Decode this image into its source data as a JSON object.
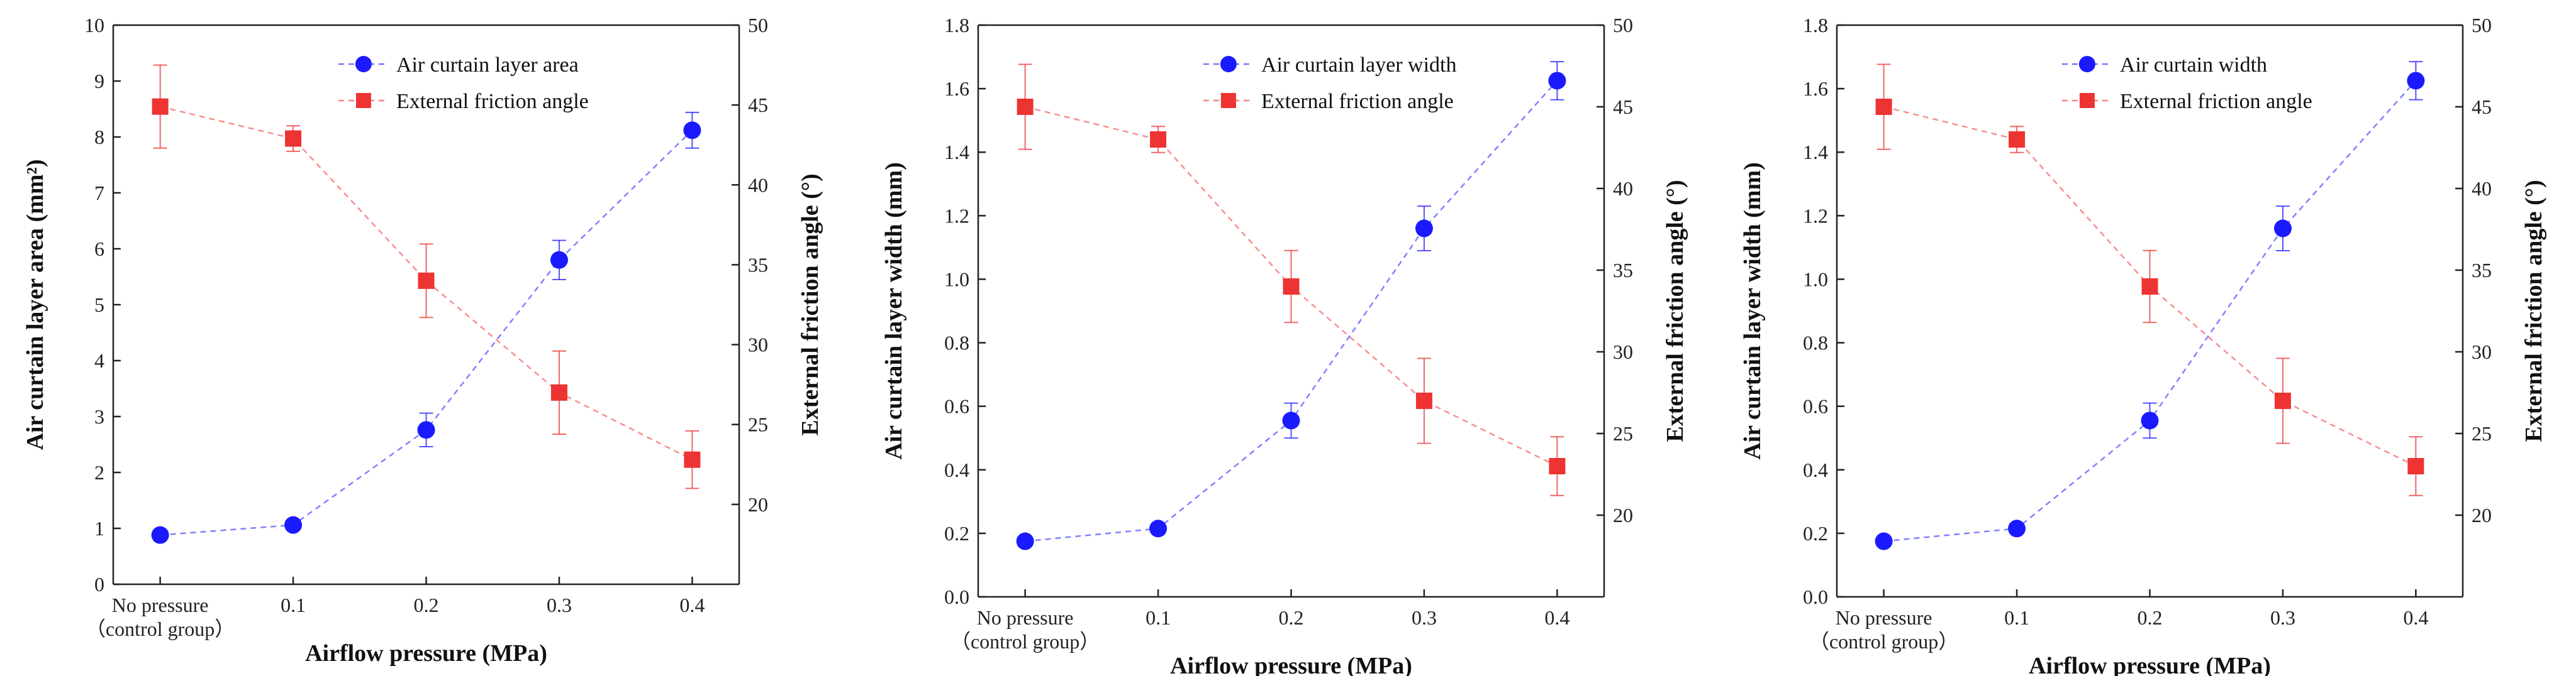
{
  "chart_data": [
    {
      "type": "line",
      "categories": [
        "No pressure\n（control group）",
        "0.1",
        "0.2",
        "0.3",
        "0.4"
      ],
      "xlabel": "Airflow pressure (MPa)",
      "ylabel_left": "Air curtain layer area (mm²)",
      "ylabel_right": "External friction angle (°)",
      "ylim_left": [
        0,
        10
      ],
      "yticks_left": [
        0,
        1,
        2,
        3,
        4,
        5,
        6,
        7,
        8,
        9,
        10
      ],
      "ylim_right": [
        15,
        50
      ],
      "yticks_right": [
        20,
        25,
        30,
        35,
        40,
        45,
        50
      ],
      "legend_placement": "top-center",
      "series": [
        {
          "name": "Air curtain layer area",
          "axis": "left",
          "color": "#1a1aff",
          "marker": "circle",
          "values": [
            0.88,
            1.06,
            2.76,
            5.8,
            8.12
          ],
          "errors": [
            0.05,
            0.06,
            0.3,
            0.35,
            0.32
          ]
        },
        {
          "name": "External friction angle",
          "axis": "right",
          "color": "#ee3333",
          "marker": "square",
          "values": [
            44.9,
            42.9,
            34.0,
            27.0,
            22.8
          ],
          "errors": [
            2.6,
            0.8,
            2.3,
            2.6,
            1.8
          ]
        }
      ]
    },
    {
      "type": "line",
      "categories": [
        "No pressure\n（control group）",
        "0.1",
        "0.2",
        "0.3",
        "0.4"
      ],
      "xlabel": "Airflow pressure (MPa)",
      "ylabel_left": "Air curtain layer width (mm)",
      "ylabel_right": "External friction angle (°)",
      "ylim_left": [
        0,
        1.8
      ],
      "yticks_left": [
        0.0,
        0.2,
        0.4,
        0.6,
        0.8,
        1.0,
        1.2,
        1.4,
        1.6,
        1.8
      ],
      "ylim_right": [
        15,
        50
      ],
      "yticks_right": [
        20,
        25,
        30,
        35,
        40,
        45,
        50
      ],
      "legend_placement": "top-center",
      "series": [
        {
          "name": "Air curtain layer width",
          "axis": "left",
          "color": "#1a1aff",
          "marker": "circle",
          "values": [
            0.175,
            0.215,
            0.555,
            1.16,
            1.625
          ],
          "errors": [
            0.01,
            0.01,
            0.055,
            0.07,
            0.06
          ]
        },
        {
          "name": "External friction angle",
          "axis": "right",
          "color": "#ee3333",
          "marker": "square",
          "values": [
            45.0,
            43.0,
            34.0,
            27.0,
            23.0
          ],
          "errors": [
            2.6,
            0.8,
            2.2,
            2.6,
            1.8
          ]
        }
      ]
    },
    {
      "type": "line",
      "categories": [
        "No pressure\n（control group）",
        "0.1",
        "0.2",
        "0.3",
        "0.4"
      ],
      "xlabel": "Airflow pressure (MPa)",
      "ylabel_left": "Air curtain layer width (mm)",
      "ylabel_right": "External friction angle (°)",
      "ylim_left": [
        0,
        1.8
      ],
      "yticks_left": [
        0.0,
        0.2,
        0.4,
        0.6,
        0.8,
        1.0,
        1.2,
        1.4,
        1.6,
        1.8
      ],
      "ylim_right": [
        15,
        50
      ],
      "yticks_right": [
        20,
        25,
        30,
        35,
        40,
        45,
        50
      ],
      "legend_placement": "top-center",
      "series": [
        {
          "name": "Air curtain width",
          "axis": "left",
          "color": "#1a1aff",
          "marker": "circle",
          "values": [
            0.175,
            0.215,
            0.555,
            1.16,
            1.625
          ],
          "errors": [
            0.01,
            0.01,
            0.055,
            0.07,
            0.06
          ]
        },
        {
          "name": "External friction angle",
          "axis": "right",
          "color": "#ee3333",
          "marker": "square",
          "values": [
            45.0,
            43.0,
            34.0,
            27.0,
            23.0
          ],
          "errors": [
            2.6,
            0.8,
            2.2,
            2.6,
            1.8
          ]
        }
      ]
    }
  ]
}
